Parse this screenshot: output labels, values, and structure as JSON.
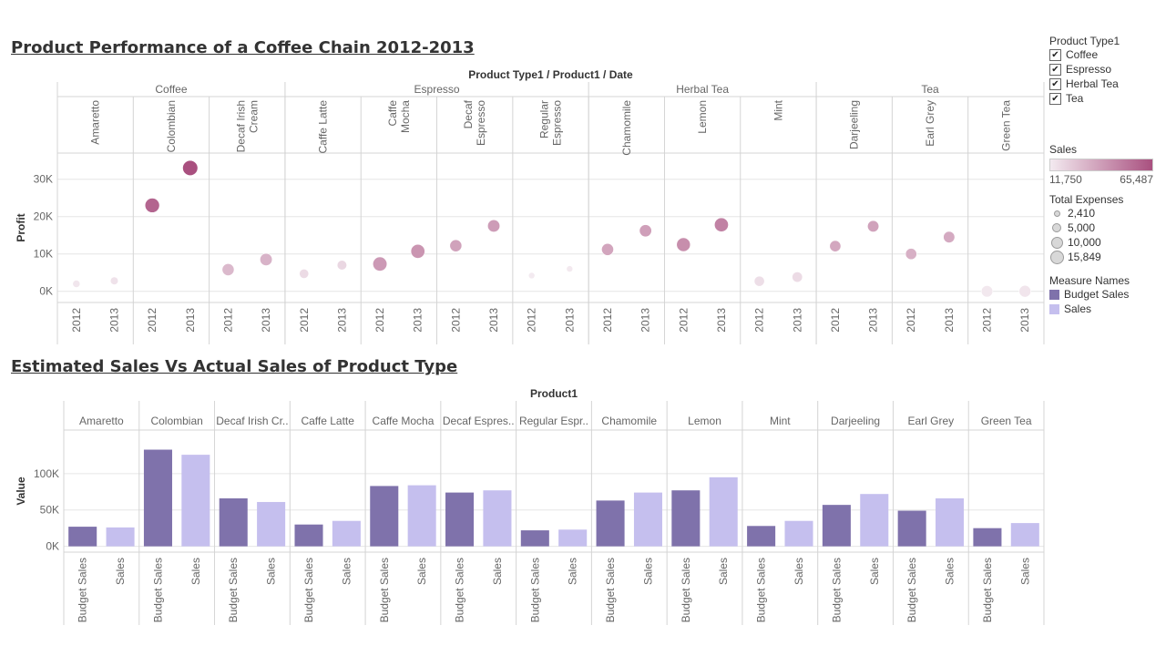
{
  "chart1_title": "Product Performance of a Coffee Chain 2012-2013",
  "chart2_title": "Estimated Sales Vs Actual Sales of Product Type",
  "chart_data": [
    {
      "type": "scatter",
      "header": "Product Type1 / Product1 / Date",
      "ylabel": "Profit",
      "ylim": [
        -3000,
        37000
      ],
      "yticks": [
        0,
        10000,
        20000,
        30000
      ],
      "ytick_labels": [
        "0K",
        "10K",
        "20K",
        "30K"
      ],
      "x_labels": [
        "2012",
        "2013"
      ],
      "product_types": [
        {
          "name": "Coffee",
          "products": [
            "Amaretto",
            "Colombian",
            "Decaf Irish Cream"
          ]
        },
        {
          "name": "Espresso",
          "products": [
            "Caffe Latte",
            "Caffe Mocha",
            "Decaf Espresso",
            "Regular Espresso"
          ]
        },
        {
          "name": "Herbal Tea",
          "products": [
            "Chamomile",
            "Lemon",
            "Mint"
          ]
        },
        {
          "name": "Tea",
          "products": [
            "Darjeeling",
            "Earl Grey",
            "Green Tea"
          ]
        }
      ],
      "products": [
        {
          "name": "Amaretto",
          "label_lines": [
            "Amaretto"
          ],
          "type": "Coffee",
          "points": [
            {
              "year": "2012",
              "profit": 2000,
              "sales": 13000,
              "expenses": 2600
            },
            {
              "year": "2013",
              "profit": 2800,
              "sales": 14500,
              "expenses": 2800
            }
          ]
        },
        {
          "name": "Colombian",
          "label_lines": [
            "Colombian"
          ],
          "type": "Coffee",
          "points": [
            {
              "year": "2012",
              "profit": 23000,
              "sales": 58000,
              "expenses": 14000
            },
            {
              "year": "2013",
              "profit": 33000,
              "sales": 65487,
              "expenses": 15849
            }
          ]
        },
        {
          "name": "Decaf Irish Cream",
          "label_lines": [
            "Decaf Irish",
            "Cream"
          ],
          "type": "Coffee",
          "points": [
            {
              "year": "2012",
              "profit": 5800,
              "sales": 29000,
              "expenses": 8000
            },
            {
              "year": "2013",
              "profit": 8500,
              "sales": 31000,
              "expenses": 8500
            }
          ]
        },
        {
          "name": "Caffe Latte",
          "label_lines": [
            "Caffe Latte"
          ],
          "type": "Espresso",
          "points": [
            {
              "year": "2012",
              "profit": 4700,
              "sales": 17000,
              "expenses": 4000
            },
            {
              "year": "2013",
              "profit": 7000,
              "sales": 18500,
              "expenses": 4300
            }
          ]
        },
        {
          "name": "Caffe Mocha",
          "label_lines": [
            "Caffe",
            "Mocha"
          ],
          "type": "Espresso",
          "points": [
            {
              "year": "2012",
              "profit": 7300,
              "sales": 40000,
              "expenses": 13000
            },
            {
              "year": "2013",
              "profit": 10700,
              "sales": 41500,
              "expenses": 12500
            }
          ]
        },
        {
          "name": "Decaf Espresso",
          "label_lines": [
            "Decaf",
            "Espresso"
          ],
          "type": "Espresso",
          "points": [
            {
              "year": "2012",
              "profit": 12200,
              "sales": 37000,
              "expenses": 8000
            },
            {
              "year": "2013",
              "profit": 17500,
              "sales": 39000,
              "expenses": 8500
            }
          ]
        },
        {
          "name": "Regular Espresso",
          "label_lines": [
            "Regular",
            "Espresso"
          ],
          "type": "Espresso",
          "points": [
            {
              "year": "2012",
              "profit": 4200,
              "sales": 11750,
              "expenses": 2410
            },
            {
              "year": "2013",
              "profit": 6000,
              "sales": 12000,
              "expenses": 2410
            }
          ]
        },
        {
          "name": "Chamomile",
          "label_lines": [
            "Chamomile"
          ],
          "type": "Herbal Tea",
          "points": [
            {
              "year": "2012",
              "profit": 11200,
              "sales": 36000,
              "expenses": 8000
            },
            {
              "year": "2013",
              "profit": 16200,
              "sales": 38000,
              "expenses": 8400
            }
          ]
        },
        {
          "name": "Lemon",
          "label_lines": [
            "Lemon"
          ],
          "type": "Herbal Tea",
          "points": [
            {
              "year": "2012",
              "profit": 12500,
              "sales": 44000,
              "expenses": 12000
            },
            {
              "year": "2013",
              "profit": 17800,
              "sales": 48000,
              "expenses": 12500
            }
          ]
        },
        {
          "name": "Mint",
          "label_lines": [
            "Mint"
          ],
          "type": "Herbal Tea",
          "points": [
            {
              "year": "2012",
              "profit": 2700,
              "sales": 16000,
              "expenses": 5000
            },
            {
              "year": "2013",
              "profit": 3800,
              "sales": 17000,
              "expenses": 5200
            }
          ]
        },
        {
          "name": "Darjeeling",
          "label_lines": [
            "Darjeeling"
          ],
          "type": "Tea",
          "points": [
            {
              "year": "2012",
              "profit": 12100,
              "sales": 35000,
              "expenses": 6500
            },
            {
              "year": "2013",
              "profit": 17400,
              "sales": 37000,
              "expenses": 6800
            }
          ]
        },
        {
          "name": "Earl Grey",
          "label_lines": [
            "Earl Grey"
          ],
          "type": "Tea",
          "points": [
            {
              "year": "2012",
              "profit": 10000,
              "sales": 32000,
              "expenses": 6500
            },
            {
              "year": "2013",
              "profit": 14500,
              "sales": 34000,
              "expenses": 6800
            }
          ]
        },
        {
          "name": "Green Tea",
          "label_lines": [
            "Green Tea"
          ],
          "type": "Tea",
          "points": [
            {
              "year": "2012",
              "profit": 0,
              "sales": 12500,
              "expenses": 7000
            },
            {
              "year": "2013",
              "profit": 0,
              "sales": 13500,
              "expenses": 7500
            }
          ]
        }
      ],
      "color_scale": {
        "min": 11750,
        "max": 65487,
        "from": "#f3eaf0",
        "to": "#a9507f"
      },
      "size_scale": {
        "min": 2410,
        "max": 15849
      }
    },
    {
      "type": "bar",
      "header": "Product1",
      "ylabel": "Value",
      "ylim": [
        -8000,
        160000
      ],
      "yticks": [
        0,
        50000,
        100000
      ],
      "ytick_labels": [
        "0K",
        "50K",
        "100K"
      ],
      "series_labels": [
        "Budget Sales",
        "Sales"
      ],
      "colors": {
        "Budget Sales": "#7f72ab",
        "Sales": "#c5bfee"
      },
      "categories": [
        {
          "name": "Amaretto",
          "label": "Amaretto",
          "budget": 27000,
          "sales": 26000
        },
        {
          "name": "Colombian",
          "label": "Colombian",
          "budget": 133000,
          "sales": 126000
        },
        {
          "name": "Decaf Irish Cream",
          "label": "Decaf Irish Cr..",
          "budget": 66000,
          "sales": 61000
        },
        {
          "name": "Caffe Latte",
          "label": "Caffe Latte",
          "budget": 30000,
          "sales": 35000
        },
        {
          "name": "Caffe Mocha",
          "label": "Caffe Mocha",
          "budget": 83000,
          "sales": 84000
        },
        {
          "name": "Decaf Espresso",
          "label": "Decaf Espres..",
          "budget": 74000,
          "sales": 77000
        },
        {
          "name": "Regular Espresso",
          "label": "Regular Espr..",
          "budget": 22000,
          "sales": 23000
        },
        {
          "name": "Chamomile",
          "label": "Chamomile",
          "budget": 63000,
          "sales": 74000
        },
        {
          "name": "Lemon",
          "label": "Lemon",
          "budget": 77000,
          "sales": 95000
        },
        {
          "name": "Mint",
          "label": "Mint",
          "budget": 28000,
          "sales": 35000
        },
        {
          "name": "Darjeeling",
          "label": "Darjeeling",
          "budget": 57000,
          "sales": 72000
        },
        {
          "name": "Earl Grey",
          "label": "Earl Grey",
          "budget": 49000,
          "sales": 66000
        },
        {
          "name": "Green Tea",
          "label": "Green Tea",
          "budget": 25000,
          "sales": 32000
        }
      ]
    }
  ],
  "legend": {
    "filter_title": "Product Type1",
    "filter_items": [
      "Coffee",
      "Espresso",
      "Herbal Tea",
      "Tea"
    ],
    "check_mark": "✔",
    "color_title": "Sales",
    "color_min_label": "11,750",
    "color_max_label": "65,487",
    "size_title": "Total Expenses",
    "size_items": [
      {
        "label": "2,410",
        "value": 2410
      },
      {
        "label": "5,000",
        "value": 5000
      },
      {
        "label": "10,000",
        "value": 10000
      },
      {
        "label": "15,849",
        "value": 15849
      }
    ],
    "measure_title": "Measure Names",
    "measure_items": [
      {
        "label": "Budget Sales",
        "color": "#7f72ab"
      },
      {
        "label": "Sales",
        "color": "#c5bfee"
      }
    ]
  }
}
